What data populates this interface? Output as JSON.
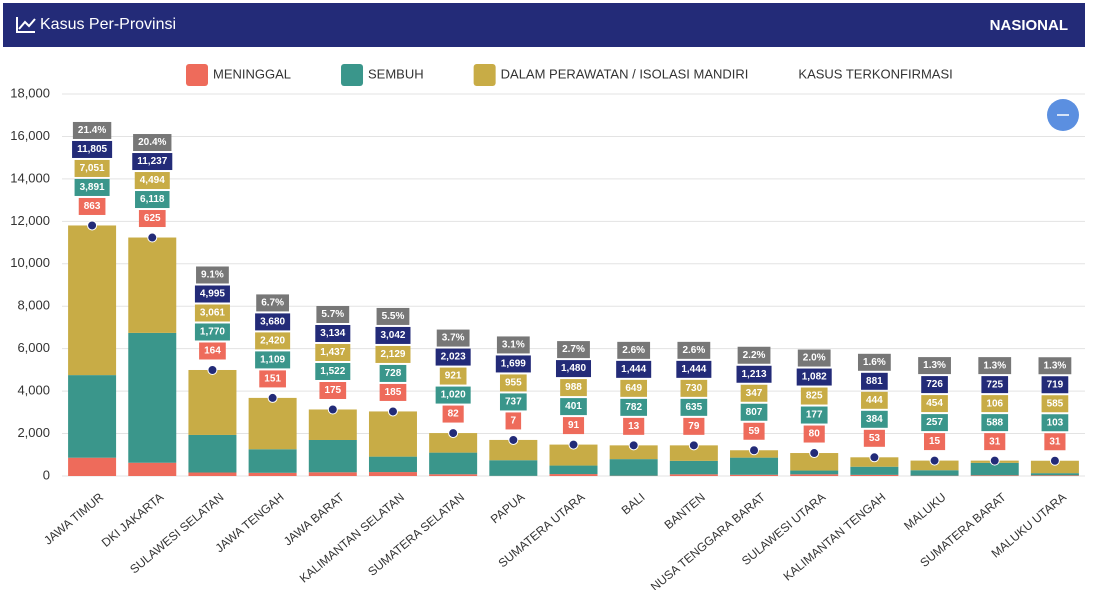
{
  "header": {
    "title": "Kasus Per-Provinsi",
    "right": "NASIONAL"
  },
  "chart_data": {
    "type": "bar",
    "stacked": true,
    "categories": [
      "JAWA TIMUR",
      "DKI JAKARTA",
      "SULAWESI SELATAN",
      "JAWA TENGAH",
      "JAWA BARAT",
      "KALIMANTAN SELATAN",
      "SUMATERA SELATAN",
      "PAPUA",
      "SUMATERA UTARA",
      "BALI",
      "BANTEN",
      "NUSA TENGGARA BARAT",
      "SULAWESI UTARA",
      "KALIMANTAN TENGAH",
      "MALUKU",
      "SUMATERA BARAT",
      "MALUKU UTARA"
    ],
    "series": [
      {
        "name": "MENINGGAL",
        "color": "#ee6b5b",
        "values": [
          863,
          625,
          164,
          151,
          175,
          185,
          82,
          7,
          91,
          13,
          79,
          59,
          80,
          53,
          15,
          31,
          31
        ],
        "value_labels": [
          "863",
          "625",
          "164",
          "151",
          "175",
          "185",
          "82",
          "7",
          "91",
          "13",
          "79",
          "59",
          "80",
          "53",
          "15",
          "31",
          "31"
        ]
      },
      {
        "name": "SEMBUH",
        "color": "#3a968b",
        "values": [
          3891,
          6118,
          1770,
          1109,
          1522,
          728,
          1020,
          737,
          401,
          782,
          635,
          807,
          177,
          384,
          257,
          588,
          103
        ],
        "value_labels": [
          "3,891",
          "6,118",
          "1,770",
          "1,109",
          "1,522",
          "728",
          "1,020",
          "737",
          "401",
          "782",
          "635",
          "807",
          "177",
          "384",
          "257",
          "588",
          "103"
        ]
      },
      {
        "name": "DALAM PERAWATAN / ISOLASI MANDIRI",
        "color": "#c8ac46",
        "values": [
          7051,
          4494,
          3061,
          2420,
          1437,
          2129,
          921,
          955,
          988,
          649,
          730,
          347,
          825,
          444,
          454,
          106,
          585
        ],
        "value_labels": [
          "7,051",
          "4,494",
          "3,061",
          "2,420",
          "1,437",
          "2,129",
          "921",
          "955",
          "988",
          "649",
          "730",
          "347",
          "825",
          "444",
          "454",
          "106",
          "585"
        ]
      },
      {
        "name": "KASUS TERKONFIRMASI",
        "type": "scatter",
        "color": "#232b78",
        "values": [
          11805,
          11237,
          4995,
          3680,
          3134,
          3042,
          2023,
          1699,
          1480,
          1444,
          1444,
          1213,
          1082,
          881,
          726,
          725,
          719
        ],
        "value_labels": [
          "11,805",
          "11,237",
          "4,995",
          "3,680",
          "3,134",
          "3,042",
          "2,023",
          "1,699",
          "1,480",
          "1,444",
          "1,444",
          "1,213",
          "1,082",
          "881",
          "726",
          "725",
          "719"
        ]
      }
    ],
    "percentages": {
      "color": "#777777",
      "values": [
        21.4,
        20.4,
        9.1,
        6.7,
        5.7,
        5.5,
        3.7,
        3.1,
        2.7,
        2.6,
        2.6,
        2.2,
        2.0,
        1.6,
        1.3,
        1.3,
        1.3
      ],
      "value_labels": [
        "21.4%",
        "20.4%",
        "9.1%",
        "6.7%",
        "5.7%",
        "5.5%",
        "3.7%",
        "3.1%",
        "2.7%",
        "2.6%",
        "2.6%",
        "2.2%",
        "2.0%",
        "1.6%",
        "1.3%",
        "1.3%",
        "1.3%"
      ]
    },
    "ylim": [
      0,
      18000
    ],
    "yticks": [
      0,
      {
        "value": 2000,
        "label": "2,000"
      },
      {
        "value": 4000,
        "label": "4,000"
      },
      {
        "value": 6000,
        "label": "6,000"
      },
      {
        "value": 8000,
        "label": "8,000"
      },
      {
        "value": 10000,
        "label": "10,000"
      },
      {
        "value": 12000,
        "label": "12,000"
      },
      {
        "value": 14000,
        "label": "14,000"
      },
      {
        "value": 16000,
        "label": "16,000"
      },
      {
        "value": 18000,
        "label": "18,000"
      }
    ],
    "grid": true
  }
}
